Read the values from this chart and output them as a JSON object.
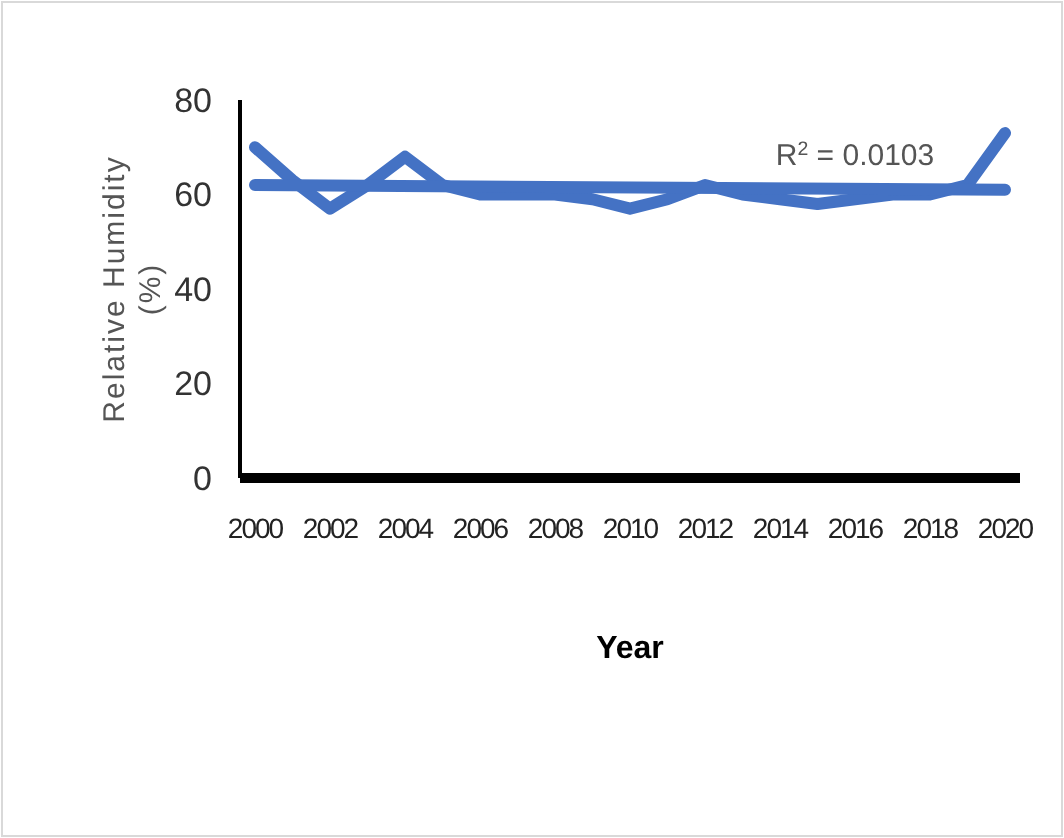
{
  "chart_data": {
    "type": "line",
    "xlabel": "Year",
    "ylabel": "Relative Humidity (%)",
    "x": [
      2000,
      2001,
      2002,
      2003,
      2004,
      2005,
      2006,
      2007,
      2008,
      2009,
      2010,
      2011,
      2012,
      2013,
      2014,
      2015,
      2016,
      2017,
      2018,
      2019,
      2020
    ],
    "series": [
      {
        "color": "#4472c4",
        "values": [
          70,
          63,
          57,
          62,
          68,
          62,
          60,
          60,
          60,
          59,
          57,
          59,
          62,
          60,
          59,
          58,
          59,
          60,
          60,
          62,
          73
        ]
      },
      {
        "type": "line",
        "color": "#4472c4",
        "x": [
          2000,
          2020
        ],
        "values": [
          62,
          61
        ]
      }
    ],
    "xlim": [
      1999.6,
      2020.4
    ],
    "xticks": [
      2000,
      2002,
      2004,
      2006,
      2008,
      2010,
      2012,
      2014,
      2016,
      2018,
      2020
    ],
    "ylim": [
      0,
      80
    ],
    "yticks": [
      0,
      20,
      40,
      60,
      80
    ],
    "annotations": [
      {
        "text": "R$^{2}$ = 0.0103",
        "x": 2016,
        "y": 62
      }
    ],
    "grid": false,
    "marker": "none",
    "line_style": "solid"
  }
}
